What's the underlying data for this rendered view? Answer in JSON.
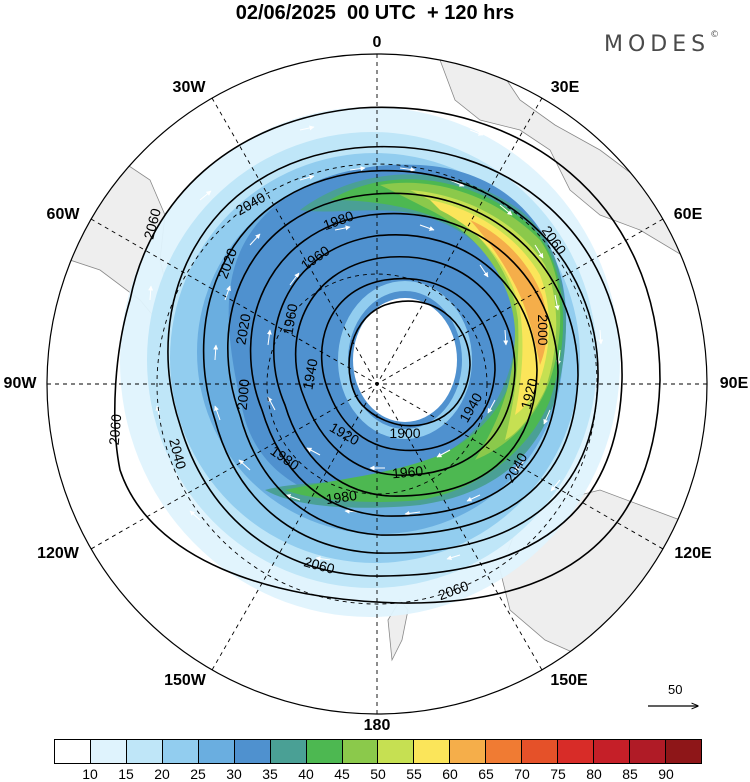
{
  "header": {
    "title": "02/06/2025  00 UTC  + 120 hrs",
    "brand": "MODES",
    "brand_mark": "©"
  },
  "map": {
    "projection": "south-polar-stereographic",
    "longitude_labels": {
      "top": "0",
      "top_right": "30E",
      "right_upper": "60E",
      "right": "90E",
      "right_lower": "120E",
      "bottom_right": "150E",
      "bottom": "180",
      "bottom_left": "150W",
      "left_lower": "120W",
      "left": "90W",
      "left_upper": "60W",
      "top_left": "30W"
    },
    "contour_labels": [
      "1900",
      "1920",
      "1920",
      "1940",
      "1940",
      "1960",
      "1960",
      "1960",
      "1980",
      "1980",
      "1980",
      "2000",
      "2000",
      "2020",
      "2020",
      "2040",
      "2040",
      "2040",
      "2060",
      "2060",
      "2060",
      "2060"
    ],
    "wind_reference": {
      "label": "50",
      "icon": "arrow-right-icon"
    },
    "land_color": "#eeeeee",
    "contour_color": "#000000"
  },
  "colorbar": {
    "ticks": [
      "10",
      "15",
      "20",
      "25",
      "30",
      "35",
      "40",
      "45",
      "50",
      "55",
      "60",
      "65",
      "70",
      "75",
      "80",
      "85",
      "90"
    ],
    "colors": [
      "#ffffff",
      "#dff3fd",
      "#bfe6f8",
      "#92cdef",
      "#6aaee0",
      "#4f91cf",
      "#4aa095",
      "#4db851",
      "#8bc94b",
      "#c6e052",
      "#fbe55a",
      "#f5ae4a",
      "#f07b33",
      "#e55129",
      "#d82c28",
      "#c51f28",
      "#b01b26",
      "#8e1618"
    ]
  }
}
